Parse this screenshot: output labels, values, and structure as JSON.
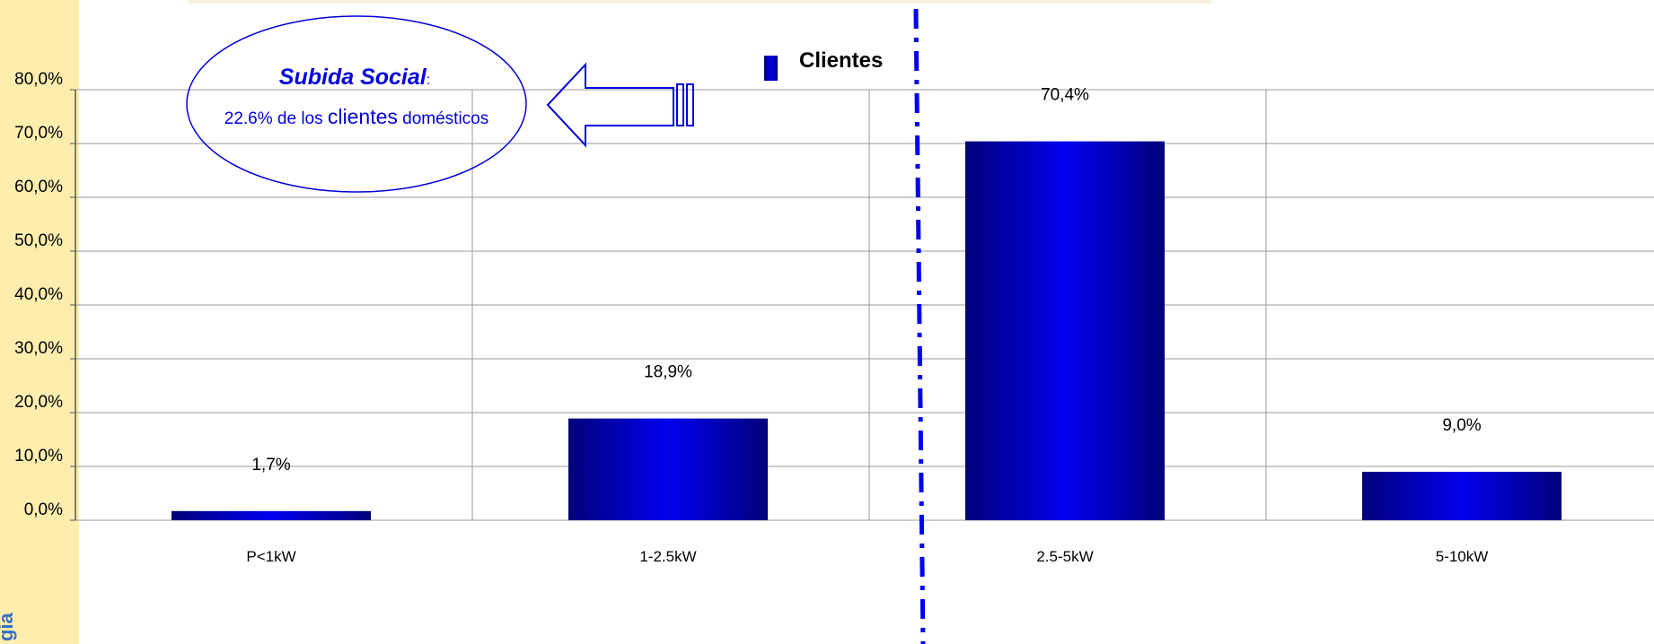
{
  "chart_data": {
    "type": "bar",
    "categories": [
      "P<1kW",
      "1-2.5kW",
      "2.5-5kW",
      "5-10kW"
    ],
    "series": [
      {
        "name": "Clientes",
        "values": [
          1.7,
          18.9,
          70.4,
          9.0
        ]
      }
    ],
    "value_labels": [
      "1,7%",
      "18,9%",
      "70,4%",
      "9,0%"
    ],
    "y_ticks": [
      "0,0%",
      "10,0%",
      "20,0%",
      "30,0%",
      "40,0%",
      "50,0%",
      "60,0%",
      "70,0%",
      "80,0%"
    ],
    "ylim": [
      0,
      80
    ],
    "grid": true,
    "legend_position": "top-center",
    "title": "",
    "xlabel": "",
    "ylabel": "",
    "bar_color": "#0000ee",
    "bar_dark": "#00007a"
  },
  "annotation": {
    "title": "Subida Social",
    "title_suffix": ":",
    "text_pre": "22.6% de los ",
    "text_highlight": "clientes",
    "text_post": " domésticos",
    "color": "#0000dd"
  },
  "sidebar": {
    "text": "gía",
    "color": "#fdeeae"
  }
}
